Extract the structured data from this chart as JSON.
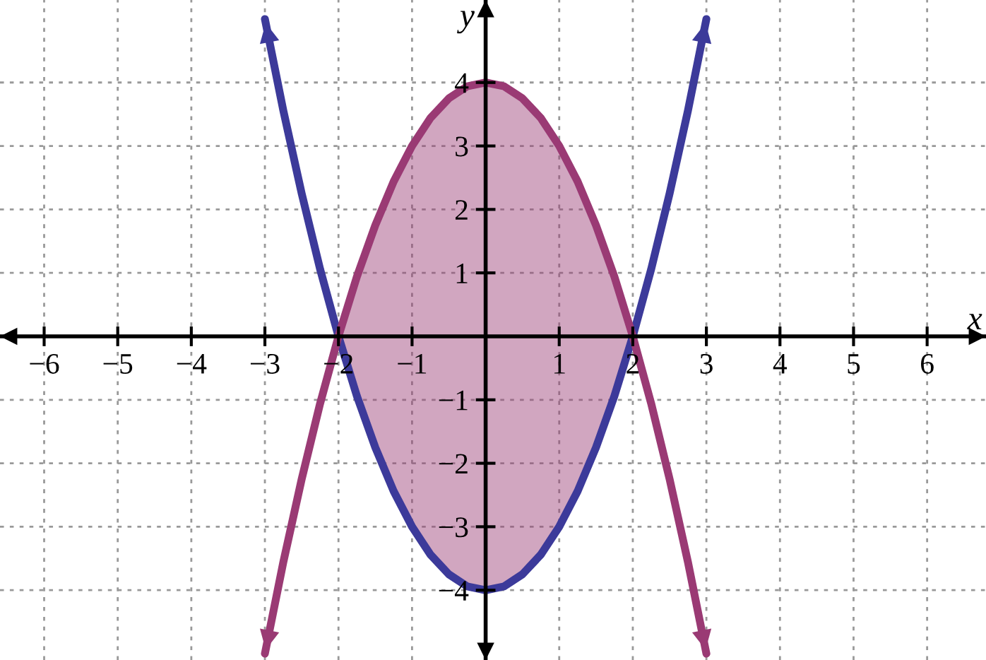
{
  "chart_data": {
    "type": "line",
    "xlabel": "x",
    "ylabel": "y",
    "x": [
      -3,
      -2.75,
      -2.5,
      -2.25,
      -2,
      -1.75,
      -1.5,
      -1.25,
      -1,
      -0.75,
      -0.5,
      -0.25,
      0,
      0.25,
      0.5,
      0.75,
      1,
      1.25,
      1.5,
      1.75,
      2,
      2.25,
      2.5,
      2.75,
      3
    ],
    "series": [
      {
        "color": "#3c3a9a",
        "values": [
          5,
          3.56,
          2.25,
          1.06,
          0,
          -0.94,
          -1.75,
          -2.44,
          -3,
          -3.44,
          -3.75,
          -3.94,
          -4,
          -3.94,
          -3.75,
          -3.44,
          -3,
          -2.44,
          -1.75,
          -0.94,
          0,
          1.06,
          2.25,
          3.56,
          5
        ]
      },
      {
        "color": "#9a3a74",
        "values": [
          -5,
          -3.56,
          -2.25,
          -1.06,
          0,
          0.94,
          1.75,
          2.44,
          3,
          3.44,
          3.75,
          3.94,
          4,
          3.94,
          3.75,
          3.44,
          3,
          2.44,
          1.75,
          0.94,
          0,
          -1.06,
          -2.25,
          -3.56,
          -5
        ],
        "lower": [
          null,
          null,
          null,
          null,
          0,
          -0.94,
          -1.75,
          -2.44,
          -3,
          -3.44,
          -3.75,
          -3.94,
          -4,
          -3.94,
          -3.75,
          -3.44,
          -3,
          -2.44,
          -1.75,
          -0.94,
          0,
          null,
          null,
          null,
          null
        ],
        "upper": [
          null,
          null,
          null,
          null,
          0,
          0.94,
          1.75,
          2.44,
          3,
          3.44,
          3.75,
          3.94,
          4,
          3.94,
          3.75,
          3.44,
          3,
          2.44,
          1.75,
          0.94,
          0,
          null,
          null,
          null,
          null
        ]
      }
    ],
    "xlim": [
      -6.6,
      6.8
    ],
    "ylim": [
      -5.1,
      5.3
    ],
    "xticks": [
      {
        "value": -6,
        "label": "−6"
      },
      {
        "value": -5,
        "label": "−5"
      },
      {
        "value": -4,
        "label": "−4"
      },
      {
        "value": -3,
        "label": "−3"
      },
      {
        "value": -2,
        "label": "−2"
      },
      {
        "value": -1,
        "label": "−1"
      },
      1,
      2,
      3,
      4,
      5,
      6
    ],
    "yticks": [
      {
        "value": -4,
        "label": "−4"
      },
      {
        "value": -3,
        "label": "−3"
      },
      {
        "value": -2,
        "label": "−2"
      },
      {
        "value": -1,
        "label": "−1"
      },
      1,
      2,
      3,
      4
    ],
    "grid": true,
    "line_style": "solid",
    "marker": "none"
  }
}
